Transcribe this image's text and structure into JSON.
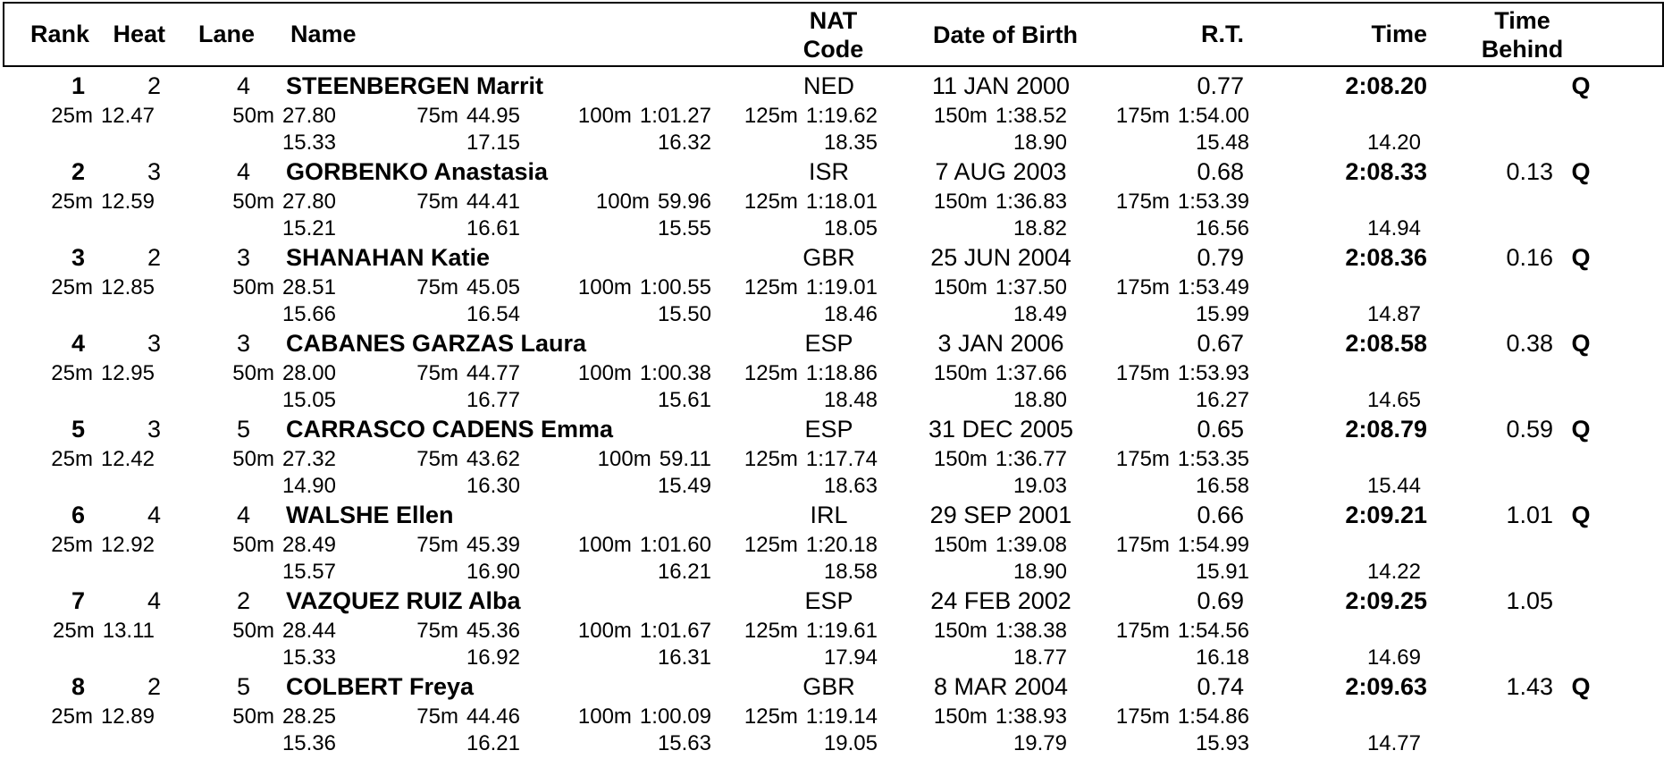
{
  "table": {
    "headers": {
      "rank": "Rank",
      "heat": "Heat",
      "lane": "Lane",
      "name": "Name",
      "nat_line1": "NAT",
      "nat_line2": "Code",
      "dob": "Date of Birth",
      "rt": "R.T.",
      "time": "Time",
      "behind_line1": "Time",
      "behind_line2": "Behind"
    },
    "rows": [
      {
        "rank": "1",
        "heat": "2",
        "lane": "4",
        "name": "STEENBERGEN Marrit",
        "nat": "NED",
        "dob": "11 JAN 2000",
        "rt": "0.77",
        "time": "2:08.20",
        "behind": "",
        "q": "Q",
        "splits": [
          {
            "label": "25m",
            "value": "12.47",
            "sub": ""
          },
          {
            "label": "50m",
            "value": "27.80",
            "sub": "15.33"
          },
          {
            "label": "75m",
            "value": "44.95",
            "sub": "17.15"
          },
          {
            "label": "100m",
            "value": "1:01.27",
            "sub": "16.32"
          },
          {
            "label": "125m",
            "value": "1:19.62",
            "sub": "18.35"
          },
          {
            "label": "150m",
            "value": "1:38.52",
            "sub": "18.90"
          },
          {
            "label": "175m",
            "value": "1:54.00",
            "sub": "15.48"
          }
        ],
        "final_sub": "14.20"
      },
      {
        "rank": "2",
        "heat": "3",
        "lane": "4",
        "name": "GORBENKO Anastasia",
        "nat": "ISR",
        "dob": "7 AUG 2003",
        "rt": "0.68",
        "time": "2:08.33",
        "behind": "0.13",
        "q": "Q",
        "splits": [
          {
            "label": "25m",
            "value": "12.59",
            "sub": ""
          },
          {
            "label": "50m",
            "value": "27.80",
            "sub": "15.21"
          },
          {
            "label": "75m",
            "value": "44.41",
            "sub": "16.61"
          },
          {
            "label": "100m",
            "value": "59.96",
            "sub": "15.55"
          },
          {
            "label": "125m",
            "value": "1:18.01",
            "sub": "18.05"
          },
          {
            "label": "150m",
            "value": "1:36.83",
            "sub": "18.82"
          },
          {
            "label": "175m",
            "value": "1:53.39",
            "sub": "16.56"
          }
        ],
        "final_sub": "14.94"
      },
      {
        "rank": "3",
        "heat": "2",
        "lane": "3",
        "name": "SHANAHAN Katie",
        "nat": "GBR",
        "dob": "25 JUN 2004",
        "rt": "0.79",
        "time": "2:08.36",
        "behind": "0.16",
        "q": "Q",
        "splits": [
          {
            "label": "25m",
            "value": "12.85",
            "sub": ""
          },
          {
            "label": "50m",
            "value": "28.51",
            "sub": "15.66"
          },
          {
            "label": "75m",
            "value": "45.05",
            "sub": "16.54"
          },
          {
            "label": "100m",
            "value": "1:00.55",
            "sub": "15.50"
          },
          {
            "label": "125m",
            "value": "1:19.01",
            "sub": "18.46"
          },
          {
            "label": "150m",
            "value": "1:37.50",
            "sub": "18.49"
          },
          {
            "label": "175m",
            "value": "1:53.49",
            "sub": "15.99"
          }
        ],
        "final_sub": "14.87"
      },
      {
        "rank": "4",
        "heat": "3",
        "lane": "3",
        "name": "CABANES GARZAS Laura",
        "nat": "ESP",
        "dob": "3 JAN 2006",
        "rt": "0.67",
        "time": "2:08.58",
        "behind": "0.38",
        "q": "Q",
        "splits": [
          {
            "label": "25m",
            "value": "12.95",
            "sub": ""
          },
          {
            "label": "50m",
            "value": "28.00",
            "sub": "15.05"
          },
          {
            "label": "75m",
            "value": "44.77",
            "sub": "16.77"
          },
          {
            "label": "100m",
            "value": "1:00.38",
            "sub": "15.61"
          },
          {
            "label": "125m",
            "value": "1:18.86",
            "sub": "18.48"
          },
          {
            "label": "150m",
            "value": "1:37.66",
            "sub": "18.80"
          },
          {
            "label": "175m",
            "value": "1:53.93",
            "sub": "16.27"
          }
        ],
        "final_sub": "14.65"
      },
      {
        "rank": "5",
        "heat": "3",
        "lane": "5",
        "name": "CARRASCO CADENS Emma",
        "nat": "ESP",
        "dob": "31 DEC 2005",
        "rt": "0.65",
        "time": "2:08.79",
        "behind": "0.59",
        "q": "Q",
        "splits": [
          {
            "label": "25m",
            "value": "12.42",
            "sub": ""
          },
          {
            "label": "50m",
            "value": "27.32",
            "sub": "14.90"
          },
          {
            "label": "75m",
            "value": "43.62",
            "sub": "16.30"
          },
          {
            "label": "100m",
            "value": "59.11",
            "sub": "15.49"
          },
          {
            "label": "125m",
            "value": "1:17.74",
            "sub": "18.63"
          },
          {
            "label": "150m",
            "value": "1:36.77",
            "sub": "19.03"
          },
          {
            "label": "175m",
            "value": "1:53.35",
            "sub": "16.58"
          }
        ],
        "final_sub": "15.44"
      },
      {
        "rank": "6",
        "heat": "4",
        "lane": "4",
        "name": "WALSHE Ellen",
        "nat": "IRL",
        "dob": "29 SEP 2001",
        "rt": "0.66",
        "time": "2:09.21",
        "behind": "1.01",
        "q": "Q",
        "splits": [
          {
            "label": "25m",
            "value": "12.92",
            "sub": ""
          },
          {
            "label": "50m",
            "value": "28.49",
            "sub": "15.57"
          },
          {
            "label": "75m",
            "value": "45.39",
            "sub": "16.90"
          },
          {
            "label": "100m",
            "value": "1:01.60",
            "sub": "16.21"
          },
          {
            "label": "125m",
            "value": "1:20.18",
            "sub": "18.58"
          },
          {
            "label": "150m",
            "value": "1:39.08",
            "sub": "18.90"
          },
          {
            "label": "175m",
            "value": "1:54.99",
            "sub": "15.91"
          }
        ],
        "final_sub": "14.22"
      },
      {
        "rank": "7",
        "heat": "4",
        "lane": "2",
        "name": "VAZQUEZ RUIZ Alba",
        "nat": "ESP",
        "dob": "24 FEB 2002",
        "rt": "0.69",
        "time": "2:09.25",
        "behind": "1.05",
        "q": "",
        "splits": [
          {
            "label": "25m",
            "value": "13.11",
            "sub": ""
          },
          {
            "label": "50m",
            "value": "28.44",
            "sub": "15.33"
          },
          {
            "label": "75m",
            "value": "45.36",
            "sub": "16.92"
          },
          {
            "label": "100m",
            "value": "1:01.67",
            "sub": "16.31"
          },
          {
            "label": "125m",
            "value": "1:19.61",
            "sub": "17.94"
          },
          {
            "label": "150m",
            "value": "1:38.38",
            "sub": "18.77"
          },
          {
            "label": "175m",
            "value": "1:54.56",
            "sub": "16.18"
          }
        ],
        "final_sub": "14.69"
      },
      {
        "rank": "8",
        "heat": "2",
        "lane": "5",
        "name": "COLBERT Freya",
        "nat": "GBR",
        "dob": "8 MAR 2004",
        "rt": "0.74",
        "time": "2:09.63",
        "behind": "1.43",
        "q": "Q",
        "splits": [
          {
            "label": "25m",
            "value": "12.89",
            "sub": ""
          },
          {
            "label": "50m",
            "value": "28.25",
            "sub": "15.36"
          },
          {
            "label": "75m",
            "value": "44.46",
            "sub": "16.21"
          },
          {
            "label": "100m",
            "value": "1:00.09",
            "sub": "15.63"
          },
          {
            "label": "125m",
            "value": "1:19.14",
            "sub": "19.05"
          },
          {
            "label": "150m",
            "value": "1:38.93",
            "sub": "19.79"
          },
          {
            "label": "175m",
            "value": "1:54.86",
            "sub": "15.93"
          }
        ],
        "final_sub": "14.77"
      }
    ]
  }
}
